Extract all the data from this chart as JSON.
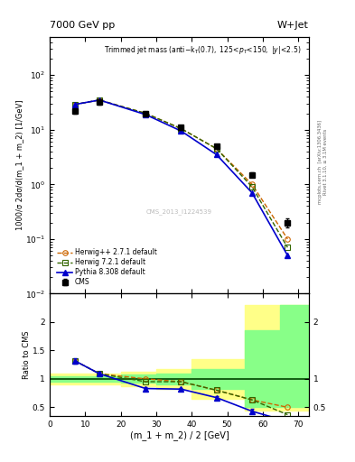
{
  "title_left": "7000 GeV pp",
  "title_right": "W+Jet",
  "plot_title_main": "Trimmed jet mass",
  "plot_title_sub": "(anti-k_{T}(0.7), 125<p_{T}<150, |y|<2.5)",
  "ylabel_main": "1000/σ 2dσ/d(m_1 + m_2) [1/GeV]",
  "ylabel_ratio": "Ratio to CMS",
  "xlabel": "(m_1 + m_2) / 2 [GeV]",
  "watermark": "CMS_2013_I1224539",
  "rivet_label": "Rivet 3.1.10, ≥ 3.1M events",
  "arxiv_label": "[arXiv:1306.3436]",
  "mcplots_label": "mcplots.cern.ch",
  "cms_x": [
    7,
    14,
    27,
    37,
    47,
    57,
    67
  ],
  "cms_y": [
    22,
    32,
    20,
    11,
    5.0,
    1.5,
    0.2
  ],
  "cms_yerr": [
    2.5,
    3.0,
    1.5,
    1.0,
    0.5,
    0.15,
    0.04
  ],
  "herwig_x": [
    7,
    14,
    27,
    37,
    47,
    57,
    67
  ],
  "herwig_y": [
    29,
    35,
    20,
    10.5,
    4.5,
    1.0,
    0.1
  ],
  "herwig2_x": [
    7,
    14,
    27,
    37,
    47,
    57,
    67
  ],
  "herwig2_y": [
    29,
    35,
    20,
    10.5,
    4.5,
    0.9,
    0.07
  ],
  "pythia_x": [
    7,
    14,
    27,
    37,
    47,
    57,
    67
  ],
  "pythia_y": [
    29,
    35,
    19,
    9.5,
    3.5,
    0.7,
    0.05
  ],
  "ratio_herwig_x": [
    7,
    14,
    27,
    37,
    47,
    57,
    67
  ],
  "ratio_herwig_y": [
    1.32,
    1.09,
    1.0,
    0.95,
    0.8,
    0.63,
    0.5
  ],
  "ratio_herwig2_x": [
    7,
    14,
    27,
    37,
    47,
    57,
    67
  ],
  "ratio_herwig2_y": [
    1.32,
    1.09,
    0.95,
    0.95,
    0.8,
    0.63,
    0.37
  ],
  "ratio_pythia_x": [
    7,
    14,
    27,
    37,
    47,
    57,
    67
  ],
  "ratio_pythia_y": [
    1.32,
    1.09,
    0.83,
    0.82,
    0.67,
    0.43,
    0.25
  ],
  "ratio_pythia_yerr": [
    0.05,
    0.03,
    0.02,
    0.02,
    0.03,
    0.04,
    0.05
  ],
  "color_cms": "#000000",
  "color_herwig": "#cc6600",
  "color_herwig2": "#336600",
  "color_pythia": "#0000cc",
  "color_band_yellow": "#ffff88",
  "color_band_green": "#88ff88",
  "ylim_main": [
    0.01,
    500
  ],
  "ylim_ratio": [
    0.35,
    2.5
  ],
  "xlim": [
    0,
    73
  ],
  "xticks": [
    0,
    10,
    20,
    30,
    40,
    50,
    60,
    70
  ]
}
